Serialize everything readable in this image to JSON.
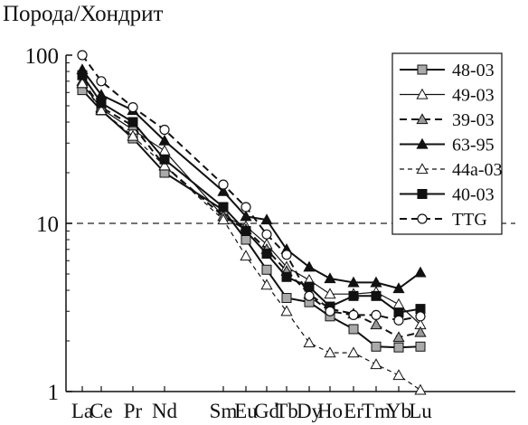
{
  "chart_data": {
    "type": "line",
    "ylabel": "Порода/Хондрит",
    "yscale": "log",
    "ylim": [
      1,
      100
    ],
    "yticks": [
      "1",
      "10",
      "100"
    ],
    "reference_line": {
      "y": 10,
      "style": "dashed"
    },
    "categories": [
      "La",
      "Ce",
      "Pr",
      "Nd",
      "Sm",
      "Eu",
      "Gd",
      "Tb",
      "Dy",
      "Ho",
      "Er",
      "Tm",
      "Yb",
      "Lu"
    ],
    "legend_position": "top-right",
    "series": [
      {
        "name": "48-03",
        "marker": "square",
        "fill": "#aaaaaa",
        "line": "solid-thick",
        "values": [
          62,
          47,
          32,
          20,
          12,
          8,
          5.3,
          3.6,
          3.4,
          2.8,
          2.35,
          1.85,
          1.83,
          1.85
        ]
      },
      {
        "name": "49-03",
        "marker": "triangle",
        "fill": "#ffffff",
        "line": "solid-thin",
        "values": [
          68,
          48,
          36,
          27,
          11,
          9.6,
          7.5,
          5.5,
          4.6,
          3.8,
          3.8,
          3.9,
          3.3,
          2.5
        ]
      },
      {
        "name": "39-03",
        "marker": "triangle",
        "fill": "#999999",
        "line": "dashed-thick",
        "values": [
          70,
          49,
          38,
          22,
          11,
          9.2,
          7,
          5.2,
          3.8,
          3.1,
          2.9,
          2.5,
          2.1,
          2.25
        ]
      },
      {
        "name": "63-95",
        "marker": "triangle",
        "fill": "#111111",
        "line": "solid-thick",
        "values": [
          82,
          58,
          47,
          31,
          15.5,
          11,
          10.5,
          7,
          5.5,
          4.7,
          4.45,
          4.45,
          4.1,
          5.1
        ]
      },
      {
        "name": "44a-03",
        "marker": "triangle",
        "fill": "#ffffff",
        "line": "dashed-thin",
        "values": [
          68,
          47,
          33,
          22,
          10.5,
          6.4,
          4.3,
          3,
          1.95,
          1.7,
          1.7,
          1.45,
          1.25,
          1.02
        ]
      },
      {
        "name": "40-03",
        "marker": "square",
        "fill": "#111111",
        "line": "solid-thick",
        "values": [
          76,
          52,
          40,
          24,
          12.5,
          9,
          6.6,
          4.8,
          4.2,
          3.2,
          3.7,
          3.7,
          2.95,
          3.1
        ]
      },
      {
        "name": "TTG",
        "marker": "circle",
        "fill": "#ffffff",
        "line": "dashed-thick",
        "values": [
          100,
          70,
          49,
          36,
          17,
          12.5,
          8.6,
          6.5,
          3.7,
          3,
          2.85,
          2.85,
          2.65,
          2.8
        ]
      }
    ]
  }
}
